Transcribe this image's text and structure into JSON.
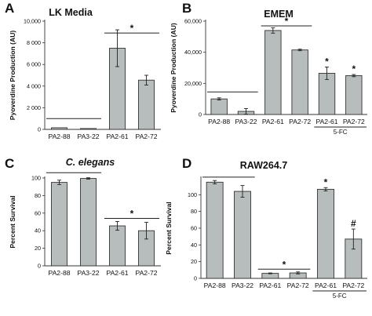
{
  "chart_data": [
    {
      "panel": "A",
      "type": "bar",
      "title": "LK Media",
      "title_italic": false,
      "ylabel": "Pyoverdine Production (AU)",
      "categories": [
        "PA2-88",
        "PA3-22",
        "PA2-61",
        "PA2-72"
      ],
      "values": [
        150,
        80,
        7500,
        4550
      ],
      "errors": [
        0,
        0,
        1700,
        450
      ],
      "ylim": [
        0,
        10000
      ],
      "yticks": [
        0,
        2000,
        4000,
        6000,
        8000,
        10000
      ],
      "ytick_labels": [
        "0",
        "2 000",
        "4 000",
        "6 000",
        "8 000",
        "10,000"
      ],
      "bar_annotations": [],
      "brackets": [
        {
          "from": 0,
          "to": 1,
          "y": 1000,
          "label": ""
        },
        {
          "from": 2,
          "to": 3,
          "y": 8900,
          "label": "*"
        }
      ],
      "group_labels": []
    },
    {
      "panel": "B",
      "type": "bar",
      "title": "EMEM",
      "title_italic": false,
      "ylabel": "Pyoverdine Production (AU)",
      "categories": [
        "PA2-88",
        "PA3-22",
        "PA2-61",
        "PA2-72",
        "PA2-61",
        "PA2-72"
      ],
      "values": [
        10000,
        2000,
        54000,
        41500,
        26500,
        25000
      ],
      "errors": [
        700,
        1800,
        1700,
        500,
        4000,
        700
      ],
      "ylim": [
        0,
        60000
      ],
      "yticks": [
        0,
        20000,
        40000,
        60000
      ],
      "ytick_labels": [
        "0",
        "20,000",
        "40,000",
        "60,000"
      ],
      "bar_annotations": [
        {
          "index": 4,
          "label": "*"
        },
        {
          "index": 5,
          "label": "*"
        }
      ],
      "brackets": [
        {
          "from": 0,
          "to": 1,
          "y": 14500,
          "label": ""
        },
        {
          "from": 2,
          "to": 3,
          "y": 57000,
          "label": "*"
        }
      ],
      "group_labels": [
        {
          "from": 4,
          "to": 5,
          "label": "5-FC"
        }
      ]
    },
    {
      "panel": "C",
      "type": "bar",
      "title": "C. elegans",
      "title_italic": true,
      "ylabel": "Percent Survival",
      "categories": [
        "PA2-88",
        "PA3-22",
        "PA2-61",
        "PA2-72"
      ],
      "values": [
        95,
        99.5,
        45.5,
        40
      ],
      "errors": [
        2.5,
        0.8,
        5,
        9.5
      ],
      "ylim": [
        0,
        100
      ],
      "yticks": [
        0,
        20,
        40,
        60,
        80,
        100
      ],
      "ytick_labels": [
        "0",
        "20",
        "40",
        "60",
        "80",
        "100"
      ],
      "bar_annotations": [],
      "brackets": [
        {
          "from": 0,
          "to": 1,
          "y": 106,
          "label": ""
        },
        {
          "from": 2,
          "to": 3,
          "y": 54,
          "label": "*"
        }
      ],
      "group_labels": []
    },
    {
      "panel": "D",
      "type": "bar",
      "title": "RAW264.7",
      "title_italic": false,
      "ylabel": "Percent Survival",
      "categories": [
        "PA2-88",
        "PA3-22",
        "PA2-61",
        "PA2-72",
        "PA2-61",
        "PA2-72"
      ],
      "values": [
        115,
        104,
        6,
        6.5,
        106.5,
        47
      ],
      "errors": [
        2,
        7,
        0.5,
        1.2,
        2,
        12
      ],
      "ylim": [
        0,
        120
      ],
      "yticks": [
        0,
        20,
        40,
        60,
        80,
        100
      ],
      "ytick_labels": [
        "0",
        "20",
        "40",
        "60",
        "80",
        "100"
      ],
      "bar_annotations": [
        {
          "index": 4,
          "label": "*"
        },
        {
          "index": 5,
          "label": "#"
        }
      ],
      "brackets": [
        {
          "from": 0,
          "to": 1,
          "y": 121,
          "label": ""
        },
        {
          "from": 2,
          "to": 3,
          "y": 11,
          "label": "*"
        }
      ],
      "group_labels": [
        {
          "from": 4,
          "to": 5,
          "label": "5-FC"
        }
      ]
    }
  ]
}
